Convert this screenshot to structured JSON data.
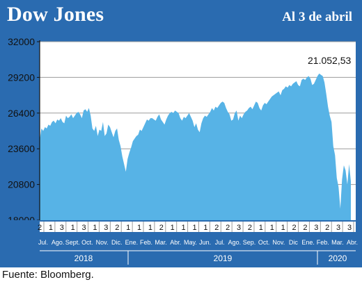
{
  "header": {
    "title": "Dow Jones",
    "subtitle": "Al 3 de abril"
  },
  "footer": {
    "source": "Fuente: Bloomberg."
  },
  "colors": {
    "panel": "#2a6bb0",
    "area": "#57b3e6",
    "plot_bg": "#ffffff",
    "grid": "#9c9c9c"
  },
  "chart_data": {
    "type": "area",
    "ylim": [
      18000,
      32000
    ],
    "yticks": [
      "32000",
      "29200",
      "26400",
      "23600",
      "20800",
      "18000"
    ],
    "grid": true,
    "annotation": "21.052,53",
    "week_numbers": [
      "2",
      "1",
      "3",
      "1",
      "3",
      "1",
      "3",
      "2",
      "1",
      "1",
      "1",
      "2",
      "1",
      "1",
      "1",
      "1",
      "2",
      "2",
      "3",
      "2",
      "1",
      "1",
      "1",
      "2",
      "2",
      "3",
      "2",
      "3",
      "3"
    ],
    "months": [
      "Jul.",
      "Ago.",
      "Sept.",
      "Oct.",
      "Nov.",
      "Dic.",
      "Ene.",
      "Feb.",
      "Mar.",
      "Abr.",
      "May.",
      "Jun.",
      "Jul.",
      "Ago.",
      "Sep.",
      "Oct.",
      "Nov.",
      "Dic",
      "Ene.",
      "Feb.",
      "Mar.",
      "Abr."
    ],
    "years": [
      "2018",
      "2019",
      "2020"
    ],
    "series": [
      {
        "values": [
          24300,
          25200,
          25000,
          25300,
          25200,
          25500,
          25400,
          25700,
          25800,
          25600,
          25900,
          25800,
          26000,
          25700,
          25600,
          26200,
          26000,
          26100,
          26300,
          26000,
          26200,
          26400,
          26500,
          26300,
          26000,
          26600,
          26700,
          26500,
          26800,
          26200,
          25200,
          25000,
          25400,
          24600,
          25100,
          25000,
          25700,
          24600,
          24800,
          25500,
          25300,
          24900,
          24500,
          25000,
          25200,
          24300,
          23800,
          23000,
          22400,
          21800,
          22800,
          23300,
          23700,
          24200,
          24400,
          24600,
          24700,
          25100,
          25000,
          25300,
          25600,
          25900,
          25800,
          26000,
          26000,
          25900,
          25800,
          26100,
          26300,
          25900,
          25700,
          25500,
          25900,
          26200,
          26400,
          26500,
          26400,
          26600,
          26500,
          26400,
          26000,
          25800,
          26100,
          26000,
          26200,
          26400,
          26100,
          25800,
          25300,
          25600,
          25100,
          24900,
          25600,
          26000,
          26200,
          26100,
          26300,
          26500,
          26800,
          26600,
          26900,
          26800,
          27000,
          27200,
          27300,
          27200,
          26800,
          26500,
          26300,
          25800,
          25900,
          26400,
          26600,
          25800,
          26200,
          26000,
          26300,
          26500,
          26600,
          26800,
          26900,
          26700,
          27000,
          27300,
          27200,
          26800,
          26600,
          27000,
          27200,
          27100,
          27300,
          27500,
          27700,
          27800,
          27900,
          28000,
          28100,
          27800,
          28200,
          28300,
          28500,
          28400,
          28600,
          28500,
          28700,
          28800,
          28900,
          28600,
          28500,
          29000,
          29100,
          29000,
          29200,
          29300,
          29100,
          28600,
          28700,
          29000,
          29300,
          29500,
          29400,
          29300,
          28800,
          27900,
          26900,
          26200,
          25700,
          23800,
          23100,
          21300,
          20600,
          18900,
          21200,
          22300,
          21900,
          20800,
          22400,
          21050
        ]
      }
    ]
  }
}
